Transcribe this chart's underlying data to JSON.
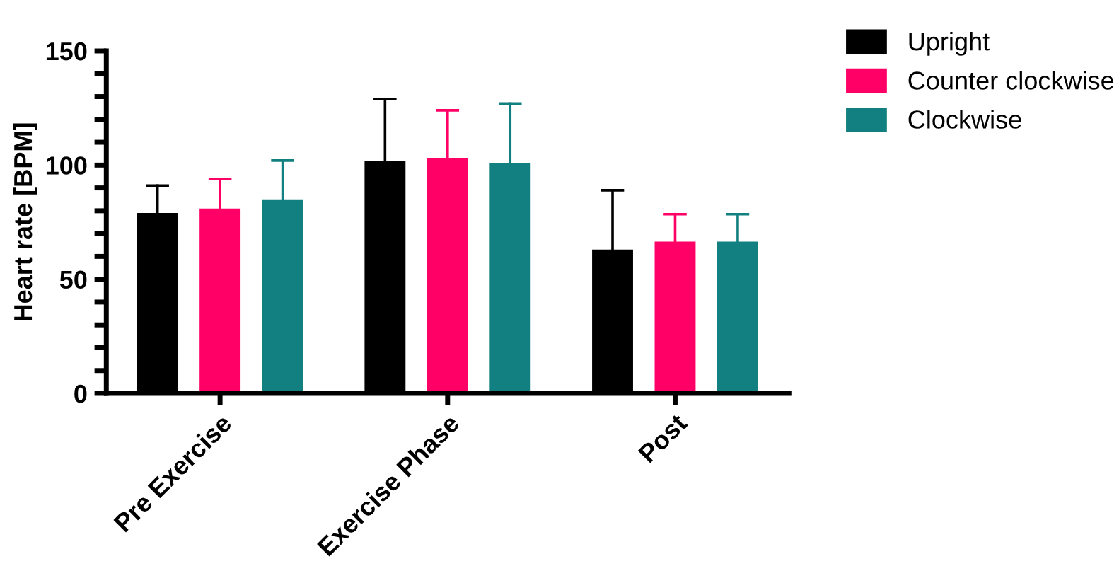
{
  "chart_data": {
    "type": "bar",
    "ylabel": "Heart rate [BPM]",
    "categories": [
      "Pre Exercise",
      "Exercise Phase",
      "Post"
    ],
    "series": [
      {
        "name": "Upright",
        "color": "#000000",
        "values": [
          79,
          102,
          63
        ],
        "errors": [
          [
            79,
            91
          ],
          [
            102,
            129
          ],
          [
            63,
            89
          ]
        ]
      },
      {
        "name": "Counter clockwise",
        "color": "#ff0066",
        "values": [
          81,
          103,
          66.5
        ],
        "errors": [
          [
            81,
            94
          ],
          [
            103,
            124
          ],
          [
            66.5,
            78.5
          ]
        ]
      },
      {
        "name": "Clockwise",
        "color": "#128080",
        "values": [
          85,
          101,
          66.5
        ],
        "errors": [
          [
            85,
            102
          ],
          [
            101,
            127
          ],
          [
            66.5,
            78.5
          ]
        ]
      }
    ],
    "ylim": [
      0,
      150
    ],
    "yticks": [
      0,
      {
        "value": 10,
        "label": null
      },
      {
        "value": 20,
        "label": null
      },
      {
        "value": 30,
        "label": null
      },
      {
        "value": 40,
        "label": null
      },
      50,
      {
        "value": 60,
        "label": null
      },
      {
        "value": 70,
        "label": null
      },
      {
        "value": 80,
        "label": null
      },
      {
        "value": 90,
        "label": null
      },
      100,
      {
        "value": 110,
        "label": null
      },
      {
        "value": 120,
        "label": null
      },
      {
        "value": 130,
        "label": null
      },
      {
        "value": 140,
        "label": null
      },
      150
    ],
    "grid": false,
    "legend": "top right"
  }
}
